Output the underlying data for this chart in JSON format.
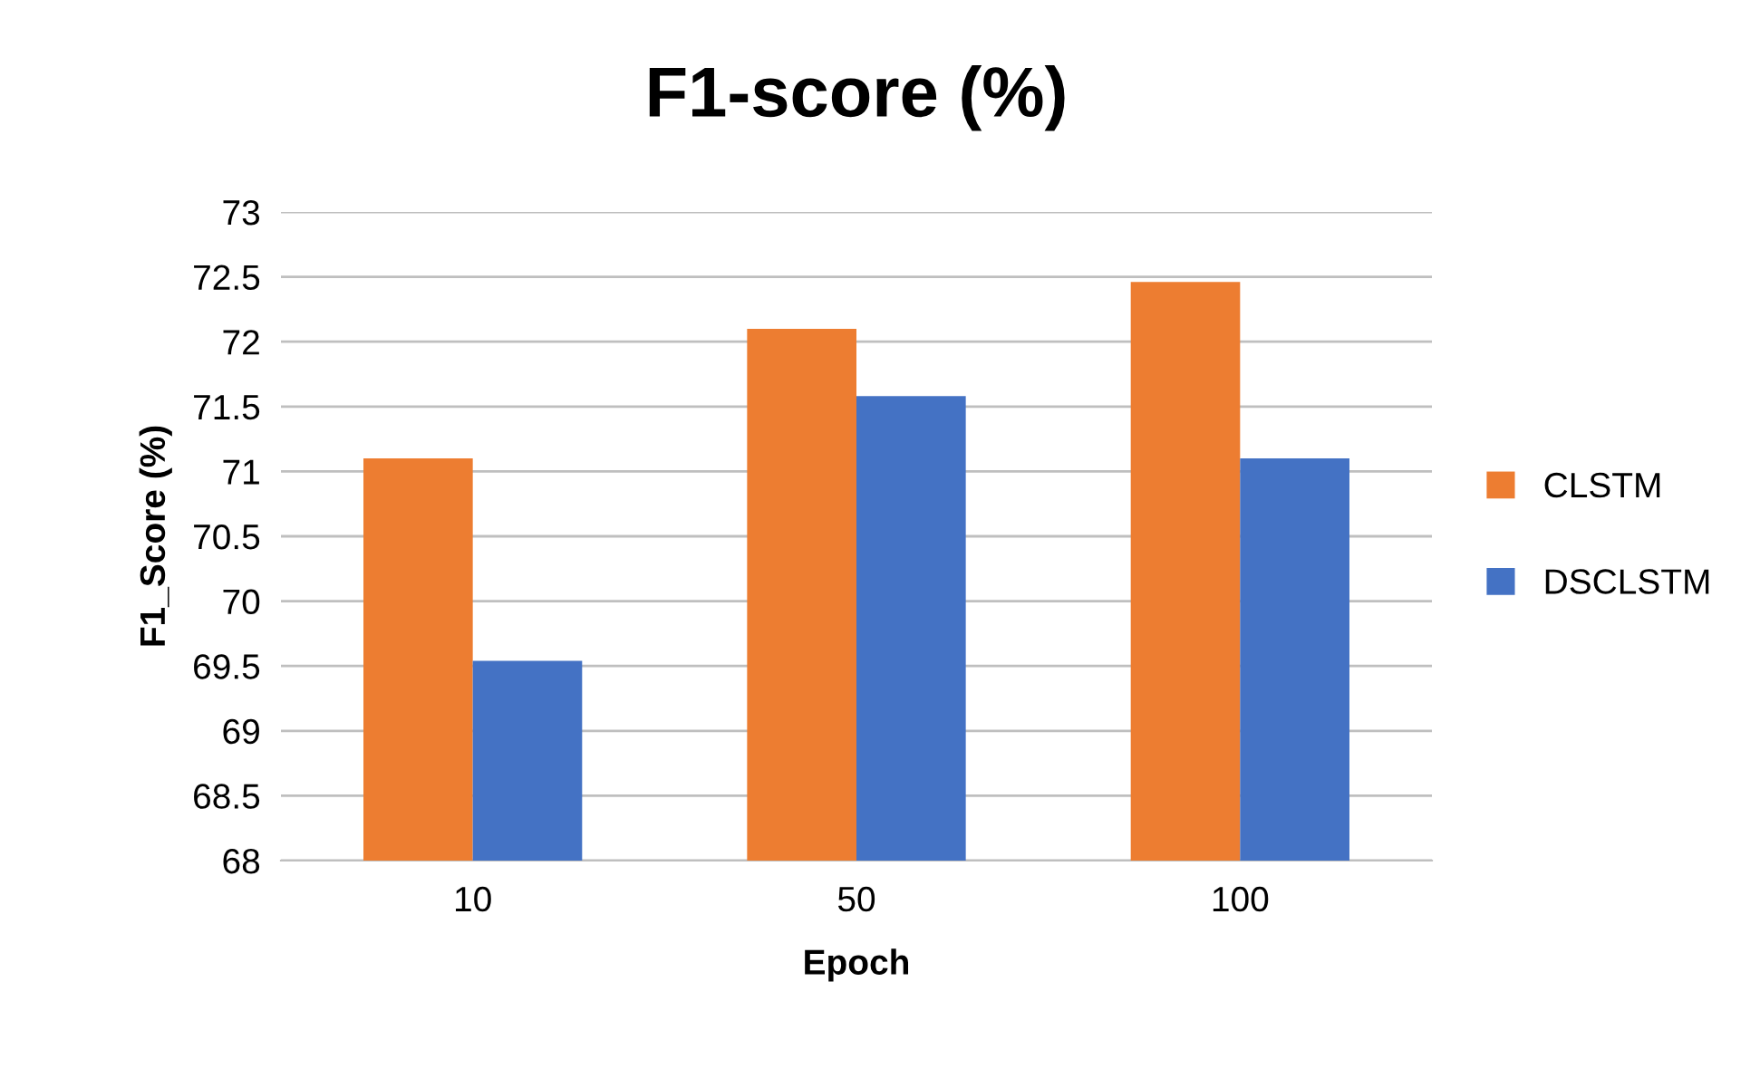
{
  "chart_data": {
    "type": "bar",
    "title": "F1-score (%)",
    "xlabel": "Epoch",
    "ylabel": "F1_Score (%)",
    "categories": [
      "10",
      "50",
      "100"
    ],
    "series": [
      {
        "name": "CLSTM",
        "color": "#ed7d31",
        "values": [
          71.1,
          72.1,
          72.46
        ]
      },
      {
        "name": "DSCLSTM",
        "color": "#4472c4",
        "values": [
          69.54,
          71.58,
          71.1
        ]
      }
    ],
    "ylim": [
      68,
      73
    ],
    "yticks": [
      68,
      {
        "value": 68.5,
        "label": "68.5"
      },
      69,
      {
        "value": 69.5,
        "label": "69.5"
      },
      70,
      {
        "value": 70.5,
        "label": "70.5"
      },
      71,
      {
        "value": 71.5,
        "label": "71.5"
      },
      72,
      {
        "value": 72.5,
        "label": "72.5"
      },
      73
    ],
    "grid": "y",
    "legend": "right"
  }
}
